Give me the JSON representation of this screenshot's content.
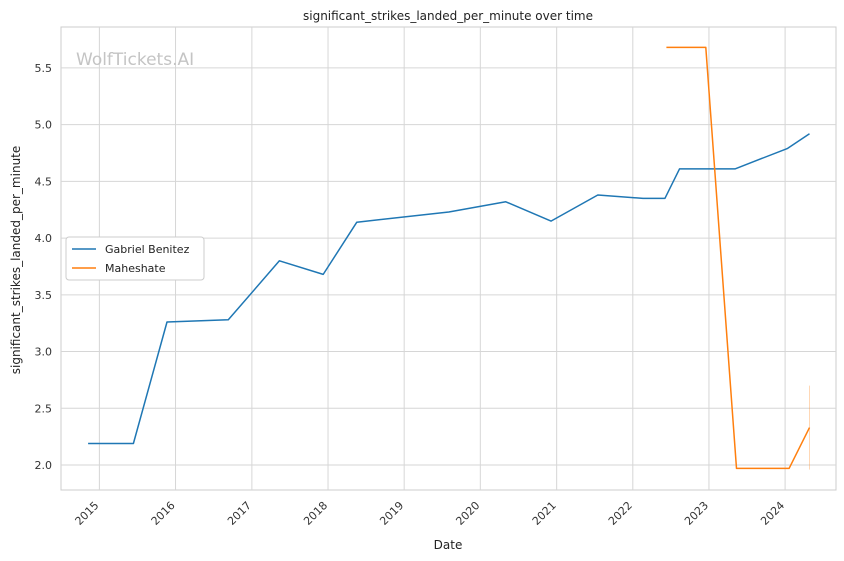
{
  "chart_data": {
    "type": "line",
    "title": "significant_strikes_landed_per_minute over time",
    "xlabel": "Date",
    "ylabel": "significant_strikes_landed_per_minute",
    "watermark": "WolfTickets.AI",
    "xlim": [
      "2014-07-01",
      "2024-09-01"
    ],
    "ylim": [
      1.78,
      5.86
    ],
    "x_ticks": [
      "2015",
      "2016",
      "2017",
      "2018",
      "2019",
      "2020",
      "2021",
      "2022",
      "2023",
      "2024"
    ],
    "y_ticks": [
      "2.0",
      "2.5",
      "3.0",
      "3.5",
      "4.0",
      "4.5",
      "5.0",
      "5.5"
    ],
    "grid": true,
    "legend_position": "center-left",
    "series": [
      {
        "name": "Gabriel Benitez",
        "color": "#1f77b4",
        "points": [
          [
            "2014-11-08",
            2.19
          ],
          [
            "2015-06-13",
            2.19
          ],
          [
            "2015-11-21",
            3.26
          ],
          [
            "2016-09-10",
            3.28
          ],
          [
            "2017-05-13",
            3.8
          ],
          [
            "2017-12-09",
            3.68
          ],
          [
            "2018-05-19",
            4.14
          ],
          [
            "2019-08-03",
            4.23
          ],
          [
            "2020-05-02",
            4.32
          ],
          [
            "2020-12-05",
            4.15
          ],
          [
            "2021-07-17",
            4.38
          ],
          [
            "2022-02-19",
            4.35
          ],
          [
            "2022-06-04",
            4.35
          ],
          [
            "2022-08-13",
            4.61
          ],
          [
            "2023-05-06",
            4.61
          ],
          [
            "2024-01-13",
            4.79
          ],
          [
            "2024-04-27",
            4.92
          ]
        ]
      },
      {
        "name": "Maheshate",
        "color": "#ff7f0e",
        "points": [
          [
            "2022-06-11",
            5.68
          ],
          [
            "2022-12-17",
            5.68
          ],
          [
            "2023-05-13",
            1.97
          ],
          [
            "2024-01-20",
            1.97
          ],
          [
            "2024-04-27",
            2.33
          ]
        ]
      }
    ]
  }
}
